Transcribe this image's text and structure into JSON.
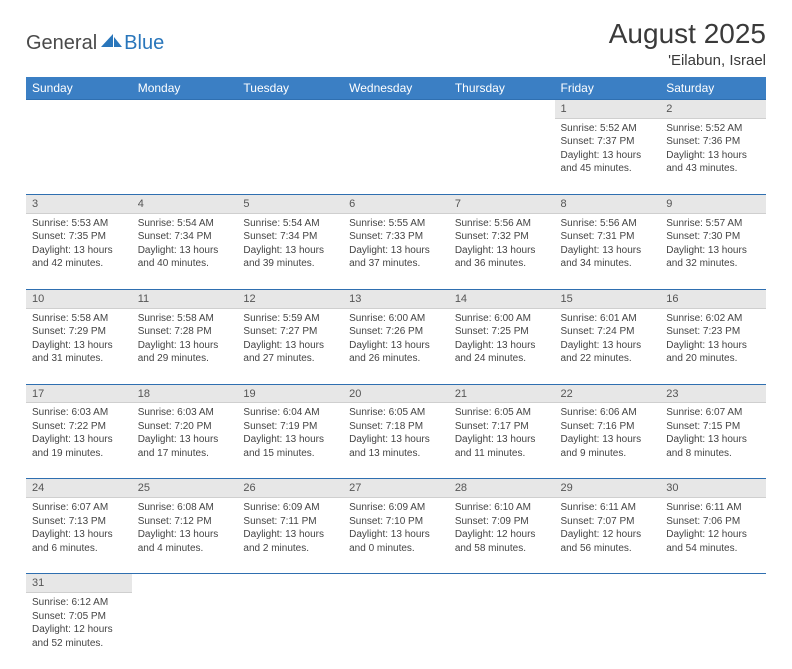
{
  "brand": {
    "part1": "General",
    "part2": "Blue",
    "logo_color": "#2976bb"
  },
  "title": "August 2025",
  "location": "'Eilabun, Israel",
  "colors": {
    "header_bg": "#3b7fc4",
    "header_text": "#ffffff",
    "daynum_bg": "#e7e7e7",
    "rule": "#2f6fb0",
    "body_text": "#444444",
    "page_bg": "#ffffff"
  },
  "fonts": {
    "title_size": 28,
    "location_size": 15,
    "dayhead_size": 12,
    "cell_size": 10
  },
  "day_headers": [
    "Sunday",
    "Monday",
    "Tuesday",
    "Wednesday",
    "Thursday",
    "Friday",
    "Saturday"
  ],
  "first_weekday_index": 5,
  "days": [
    {
      "n": 1,
      "sunrise": "5:52 AM",
      "sunset": "7:37 PM",
      "daylight": "13 hours and 45 minutes."
    },
    {
      "n": 2,
      "sunrise": "5:52 AM",
      "sunset": "7:36 PM",
      "daylight": "13 hours and 43 minutes."
    },
    {
      "n": 3,
      "sunrise": "5:53 AM",
      "sunset": "7:35 PM",
      "daylight": "13 hours and 42 minutes."
    },
    {
      "n": 4,
      "sunrise": "5:54 AM",
      "sunset": "7:34 PM",
      "daylight": "13 hours and 40 minutes."
    },
    {
      "n": 5,
      "sunrise": "5:54 AM",
      "sunset": "7:34 PM",
      "daylight": "13 hours and 39 minutes."
    },
    {
      "n": 6,
      "sunrise": "5:55 AM",
      "sunset": "7:33 PM",
      "daylight": "13 hours and 37 minutes."
    },
    {
      "n": 7,
      "sunrise": "5:56 AM",
      "sunset": "7:32 PM",
      "daylight": "13 hours and 36 minutes."
    },
    {
      "n": 8,
      "sunrise": "5:56 AM",
      "sunset": "7:31 PM",
      "daylight": "13 hours and 34 minutes."
    },
    {
      "n": 9,
      "sunrise": "5:57 AM",
      "sunset": "7:30 PM",
      "daylight": "13 hours and 32 minutes."
    },
    {
      "n": 10,
      "sunrise": "5:58 AM",
      "sunset": "7:29 PM",
      "daylight": "13 hours and 31 minutes."
    },
    {
      "n": 11,
      "sunrise": "5:58 AM",
      "sunset": "7:28 PM",
      "daylight": "13 hours and 29 minutes."
    },
    {
      "n": 12,
      "sunrise": "5:59 AM",
      "sunset": "7:27 PM",
      "daylight": "13 hours and 27 minutes."
    },
    {
      "n": 13,
      "sunrise": "6:00 AM",
      "sunset": "7:26 PM",
      "daylight": "13 hours and 26 minutes."
    },
    {
      "n": 14,
      "sunrise": "6:00 AM",
      "sunset": "7:25 PM",
      "daylight": "13 hours and 24 minutes."
    },
    {
      "n": 15,
      "sunrise": "6:01 AM",
      "sunset": "7:24 PM",
      "daylight": "13 hours and 22 minutes."
    },
    {
      "n": 16,
      "sunrise": "6:02 AM",
      "sunset": "7:23 PM",
      "daylight": "13 hours and 20 minutes."
    },
    {
      "n": 17,
      "sunrise": "6:03 AM",
      "sunset": "7:22 PM",
      "daylight": "13 hours and 19 minutes."
    },
    {
      "n": 18,
      "sunrise": "6:03 AM",
      "sunset": "7:20 PM",
      "daylight": "13 hours and 17 minutes."
    },
    {
      "n": 19,
      "sunrise": "6:04 AM",
      "sunset": "7:19 PM",
      "daylight": "13 hours and 15 minutes."
    },
    {
      "n": 20,
      "sunrise": "6:05 AM",
      "sunset": "7:18 PM",
      "daylight": "13 hours and 13 minutes."
    },
    {
      "n": 21,
      "sunrise": "6:05 AM",
      "sunset": "7:17 PM",
      "daylight": "13 hours and 11 minutes."
    },
    {
      "n": 22,
      "sunrise": "6:06 AM",
      "sunset": "7:16 PM",
      "daylight": "13 hours and 9 minutes."
    },
    {
      "n": 23,
      "sunrise": "6:07 AM",
      "sunset": "7:15 PM",
      "daylight": "13 hours and 8 minutes."
    },
    {
      "n": 24,
      "sunrise": "6:07 AM",
      "sunset": "7:13 PM",
      "daylight": "13 hours and 6 minutes."
    },
    {
      "n": 25,
      "sunrise": "6:08 AM",
      "sunset": "7:12 PM",
      "daylight": "13 hours and 4 minutes."
    },
    {
      "n": 26,
      "sunrise": "6:09 AM",
      "sunset": "7:11 PM",
      "daylight": "13 hours and 2 minutes."
    },
    {
      "n": 27,
      "sunrise": "6:09 AM",
      "sunset": "7:10 PM",
      "daylight": "13 hours and 0 minutes."
    },
    {
      "n": 28,
      "sunrise": "6:10 AM",
      "sunset": "7:09 PM",
      "daylight": "12 hours and 58 minutes."
    },
    {
      "n": 29,
      "sunrise": "6:11 AM",
      "sunset": "7:07 PM",
      "daylight": "12 hours and 56 minutes."
    },
    {
      "n": 30,
      "sunrise": "6:11 AM",
      "sunset": "7:06 PM",
      "daylight": "12 hours and 54 minutes."
    },
    {
      "n": 31,
      "sunrise": "6:12 AM",
      "sunset": "7:05 PM",
      "daylight": "12 hours and 52 minutes."
    }
  ],
  "labels": {
    "sunrise": "Sunrise:",
    "sunset": "Sunset:",
    "daylight": "Daylight:"
  }
}
